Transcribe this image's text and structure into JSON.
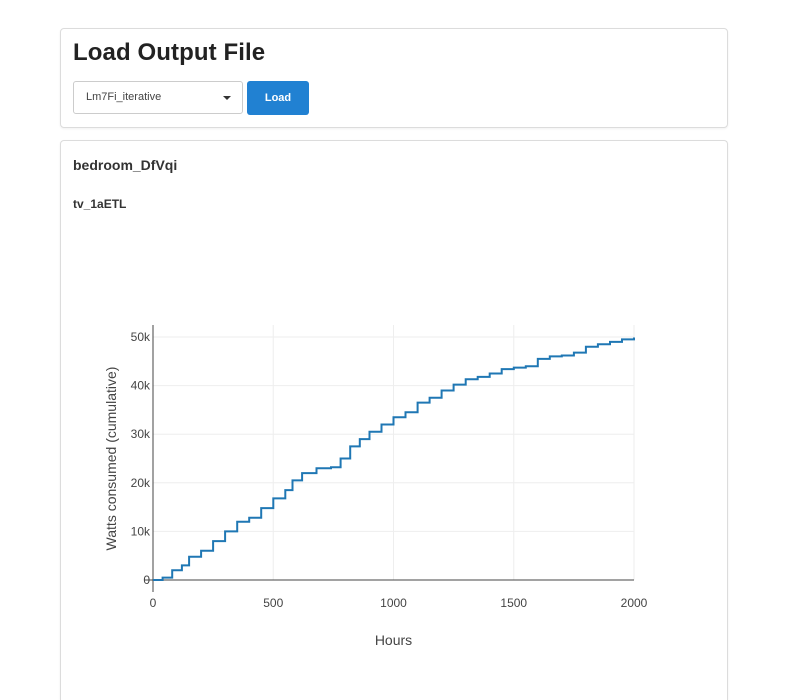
{
  "load_panel": {
    "title": "Load Output File",
    "file_select": {
      "selected": "Lm7Fi_iterative"
    },
    "load_button_label": "Load"
  },
  "results_panel": {
    "room_title": "bedroom_DfVqi",
    "device_title": "tv_1aETL"
  },
  "colors": {
    "accent": "#2181d2",
    "series_line": "#1f77b4"
  },
  "icons": {
    "dropdown": "caret-down-icon"
  },
  "chart_data": {
    "type": "line",
    "xlabel": "Hours",
    "ylabel": "Watts consumed (cumulative)",
    "xlim": [
      0,
      2000
    ],
    "ylim": [
      0,
      50000
    ],
    "x_ticks": [
      0,
      500,
      1000,
      1500,
      2000
    ],
    "x_tick_labels": [
      "0",
      "500",
      "1000",
      "1500",
      "2000"
    ],
    "y_ticks": [
      0,
      10000,
      20000,
      30000,
      40000,
      50000
    ],
    "y_tick_labels": [
      "0",
      "10k",
      "20k",
      "30k",
      "40k",
      "50k"
    ],
    "grid": true,
    "legend": false,
    "series": [
      {
        "x": [
          0,
          40,
          80,
          120,
          150,
          200,
          250,
          300,
          350,
          400,
          450,
          500,
          550,
          580,
          620,
          680,
          740,
          780,
          820,
          860,
          900,
          950,
          1000,
          1050,
          1100,
          1150,
          1200,
          1250,
          1300,
          1350,
          1400,
          1450,
          1500,
          1550,
          1600,
          1650,
          1700,
          1750,
          1800,
          1850,
          1900,
          1950,
          2000
        ],
        "y": [
          0,
          500,
          2000,
          3000,
          4800,
          6000,
          8000,
          10000,
          12000,
          12800,
          14800,
          16800,
          18500,
          20500,
          22000,
          23000,
          23200,
          25000,
          27500,
          29000,
          30500,
          32000,
          33500,
          34500,
          36500,
          37500,
          39000,
          40200,
          41300,
          41800,
          42500,
          43400,
          43700,
          44000,
          45500,
          46000,
          46200,
          46800,
          48000,
          48500,
          49000,
          49500,
          49900
        ]
      }
    ]
  }
}
